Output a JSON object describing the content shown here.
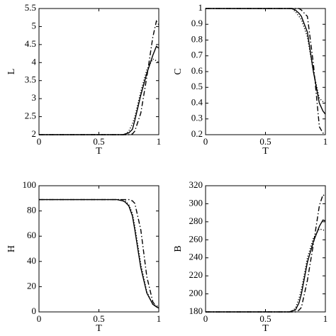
{
  "chart_data": [
    {
      "type": "line",
      "xlabel": "T",
      "ylabel": "L",
      "x": [
        0,
        0.5,
        0.6,
        0.65,
        0.7,
        0.72,
        0.75,
        0.78,
        0.8,
        0.85,
        0.9,
        0.95,
        0.98,
        1.0
      ],
      "xlim": [
        0,
        1
      ],
      "xticks": [
        0,
        0.5,
        1
      ],
      "ylim": [
        2,
        5.5
      ],
      "yticks": [
        2,
        2.5,
        3,
        3.5,
        4,
        4.5,
        5,
        5.5
      ],
      "series": [
        {
          "color": "#000000",
          "dash": "solid",
          "values": [
            2,
            2,
            2,
            2,
            2,
            2.02,
            2.05,
            2.15,
            2.4,
            3.1,
            3.7,
            4.2,
            4.45,
            4.4
          ]
        },
        {
          "color": "#000000",
          "dash": "dashdot",
          "values": [
            2,
            2,
            2,
            2,
            2,
            2,
            2,
            2.02,
            2.1,
            2.6,
            3.6,
            4.7,
            5.15,
            5.05
          ]
        },
        {
          "color": "#000000",
          "dash": "dotted",
          "values": [
            2,
            2,
            2,
            2,
            2,
            2,
            2.1,
            2.3,
            2.5,
            3.2,
            3.8,
            4.1,
            4.05,
            4.0
          ]
        }
      ]
    },
    {
      "type": "line",
      "xlabel": "T",
      "ylabel": "C",
      "x": [
        0,
        0.5,
        0.6,
        0.65,
        0.7,
        0.72,
        0.75,
        0.78,
        0.8,
        0.85,
        0.9,
        0.95,
        0.98,
        1.0
      ],
      "xlim": [
        0,
        1
      ],
      "xticks": [
        0,
        0.5,
        1
      ],
      "ylim": [
        0.2,
        1
      ],
      "yticks": [
        0.2,
        0.3,
        0.4,
        0.5,
        0.6,
        0.7,
        0.8,
        0.9,
        1
      ],
      "series": [
        {
          "color": "#000000",
          "dash": "solid",
          "values": [
            1,
            1,
            1,
            1,
            1,
            1,
            0.99,
            0.97,
            0.95,
            0.85,
            0.6,
            0.4,
            0.35,
            0.33
          ]
        },
        {
          "color": "#000000",
          "dash": "dashdot",
          "values": [
            1,
            1,
            1,
            1,
            1,
            1,
            1,
            1,
            0.99,
            0.95,
            0.65,
            0.25,
            0.21,
            0.21
          ]
        },
        {
          "color": "#000000",
          "dash": "dotted",
          "values": [
            1,
            1,
            1,
            1,
            1,
            1,
            0.98,
            0.95,
            0.93,
            0.82,
            0.6,
            0.43,
            0.41,
            0.4
          ]
        }
      ]
    },
    {
      "type": "line",
      "xlabel": "T",
      "ylabel": "H",
      "x": [
        0,
        0.5,
        0.6,
        0.65,
        0.7,
        0.72,
        0.75,
        0.78,
        0.8,
        0.85,
        0.9,
        0.95,
        0.98,
        1.0
      ],
      "xlim": [
        0,
        1
      ],
      "xticks": [
        0,
        0.5,
        1
      ],
      "ylim": [
        0,
        100
      ],
      "yticks": [
        0,
        20,
        40,
        60,
        80,
        100
      ],
      "series": [
        {
          "color": "#000000",
          "dash": "solid",
          "values": [
            89,
            89,
            89,
            89,
            88,
            87,
            84,
            76,
            65,
            35,
            15,
            6,
            4,
            3
          ]
        },
        {
          "color": "#000000",
          "dash": "dashdot",
          "values": [
            89,
            89,
            89,
            89,
            89,
            89,
            89,
            88,
            86,
            65,
            28,
            8,
            4,
            3
          ]
        },
        {
          "color": "#000000",
          "dash": "dotted",
          "values": [
            89,
            89,
            89,
            89,
            89,
            88,
            85,
            78,
            68,
            38,
            16,
            6,
            5,
            4
          ]
        }
      ]
    },
    {
      "type": "line",
      "xlabel": "T",
      "ylabel": "B",
      "x": [
        0,
        0.5,
        0.6,
        0.65,
        0.7,
        0.72,
        0.75,
        0.78,
        0.8,
        0.85,
        0.9,
        0.95,
        0.98,
        1.0
      ],
      "xlim": [
        0,
        1
      ],
      "xticks": [
        0,
        0.5,
        1
      ],
      "ylim": [
        180,
        320
      ],
      "yticks": [
        180,
        200,
        220,
        240,
        260,
        280,
        300,
        320
      ],
      "series": [
        {
          "color": "#000000",
          "dash": "solid",
          "values": [
            180,
            180,
            180,
            180,
            180,
            181,
            182,
            190,
            200,
            235,
            258,
            275,
            282,
            281
          ]
        },
        {
          "color": "#000000",
          "dash": "dashdot",
          "values": [
            180,
            180,
            180,
            180,
            180,
            180,
            180,
            182,
            185,
            215,
            255,
            298,
            310,
            308
          ]
        },
        {
          "color": "#000000",
          "dash": "dotted",
          "values": [
            180,
            180,
            180,
            180,
            180,
            181,
            184,
            195,
            205,
            240,
            262,
            272,
            271,
            270
          ]
        }
      ]
    }
  ]
}
